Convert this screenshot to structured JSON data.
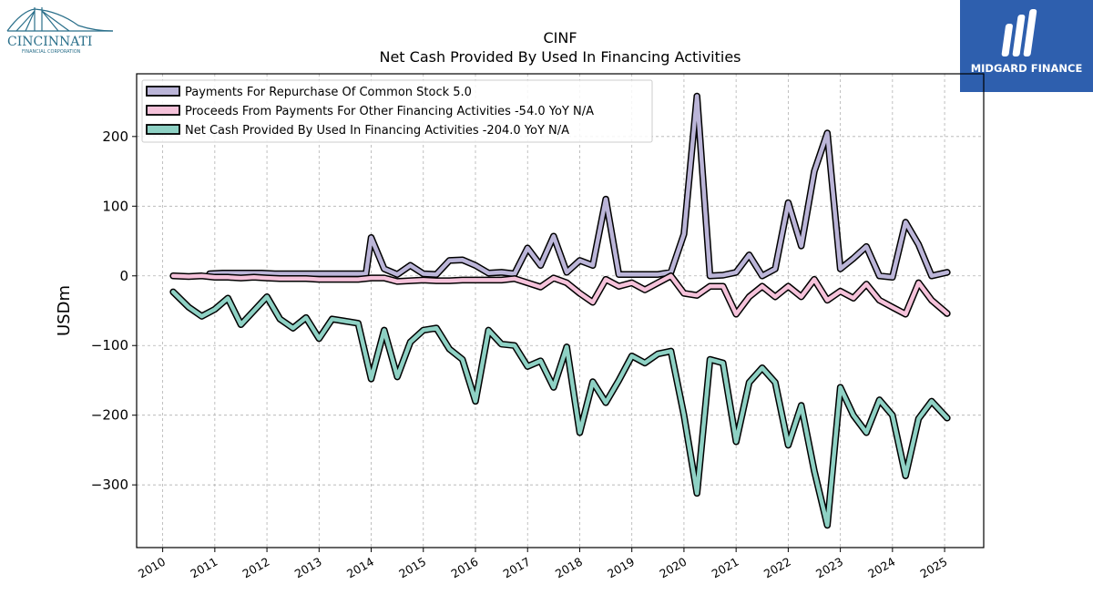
{
  "header": {
    "company_logo_text": "CINCINNATI",
    "company_logo_subtext": "FINANCIAL CORPORATION",
    "brand": "MIDGARD FINANCE"
  },
  "colors": {
    "repurchase": "#bbb5d8",
    "other": "#f5c2da",
    "net": "#8ed1c4",
    "brand_bg": "#2e5fae",
    "logo_teal": "#2a6f8a"
  },
  "chart_data": {
    "type": "line",
    "title": "CINF",
    "subtitle": "Net Cash Provided By Used In Financing Activities",
    "xlabel": "",
    "ylabel": "USDm",
    "ylim": [
      -390,
      290
    ],
    "yticks": [
      200,
      100,
      0,
      -100,
      -200,
      -300
    ],
    "ytick_labels": [
      "200",
      "100",
      "0",
      "−100",
      "−200",
      "−300"
    ],
    "xlim": [
      2009.5,
      2025.75
    ],
    "xticks": [
      2010,
      2011,
      2012,
      2013,
      2014,
      2015,
      2016,
      2017,
      2018,
      2019,
      2020,
      2021,
      2022,
      2023,
      2024,
      2025
    ],
    "grid": true,
    "legend_position": "top-left",
    "legend": [
      "Payments For Repurchase Of Common Stock  5.0",
      "Proceeds From Payments For Other Financing Activities  -54.0 YoY N/A",
      "Net Cash Provided By Used In Financing Activities  -204.0 YoY N/A"
    ],
    "series": [
      {
        "name": "Payments For Repurchase Of Common Stock",
        "points": [
          [
            2010.9,
            3
          ],
          [
            2011.15,
            4
          ],
          [
            2011.4,
            4
          ],
          [
            2011.65,
            4
          ],
          [
            2011.9,
            4
          ],
          [
            2012.15,
            3
          ],
          [
            2012.4,
            3
          ],
          [
            2012.65,
            3
          ],
          [
            2012.9,
            3
          ],
          [
            2013.15,
            3
          ],
          [
            2013.4,
            3
          ],
          [
            2013.65,
            3
          ],
          [
            2013.9,
            3
          ],
          [
            2014.0,
            55
          ],
          [
            2014.25,
            10
          ],
          [
            2014.5,
            2
          ],
          [
            2014.75,
            15
          ],
          [
            2015.0,
            3
          ],
          [
            2015.25,
            2
          ],
          [
            2015.5,
            22
          ],
          [
            2015.75,
            23
          ],
          [
            2016.0,
            15
          ],
          [
            2016.25,
            4
          ],
          [
            2016.5,
            5
          ],
          [
            2016.75,
            3
          ],
          [
            2017.0,
            40
          ],
          [
            2017.25,
            15
          ],
          [
            2017.5,
            57
          ],
          [
            2017.75,
            5
          ],
          [
            2018.0,
            22
          ],
          [
            2018.25,
            15
          ],
          [
            2018.5,
            110
          ],
          [
            2018.75,
            2
          ],
          [
            2019.0,
            2
          ],
          [
            2019.25,
            2
          ],
          [
            2019.5,
            2
          ],
          [
            2019.75,
            5
          ],
          [
            2020.0,
            60
          ],
          [
            2020.25,
            258
          ],
          [
            2020.5,
            0
          ],
          [
            2020.75,
            1
          ],
          [
            2021.0,
            5
          ],
          [
            2021.25,
            30
          ],
          [
            2021.5,
            0
          ],
          [
            2021.75,
            10
          ],
          [
            2022.0,
            105
          ],
          [
            2022.25,
            43
          ],
          [
            2022.5,
            150
          ],
          [
            2022.75,
            205
          ],
          [
            2023.0,
            10
          ],
          [
            2023.25,
            25
          ],
          [
            2023.5,
            42
          ],
          [
            2023.75,
            0
          ],
          [
            2024.0,
            -2
          ],
          [
            2024.25,
            77
          ],
          [
            2024.5,
            45
          ],
          [
            2024.75,
            0
          ],
          [
            2025.05,
            5
          ]
        ]
      },
      {
        "name": "Proceeds From Payments For Other Financing Activities",
        "points": [
          [
            2010.2,
            0
          ],
          [
            2010.5,
            -1
          ],
          [
            2010.75,
            0
          ],
          [
            2011.0,
            -2
          ],
          [
            2011.25,
            -2
          ],
          [
            2011.5,
            -3
          ],
          [
            2011.75,
            -2
          ],
          [
            2012.0,
            -3
          ],
          [
            2012.25,
            -4
          ],
          [
            2012.5,
            -4
          ],
          [
            2012.75,
            -4
          ],
          [
            2013.0,
            -5
          ],
          [
            2013.25,
            -5
          ],
          [
            2013.5,
            -5
          ],
          [
            2013.75,
            -5
          ],
          [
            2014.0,
            -3
          ],
          [
            2014.25,
            -3
          ],
          [
            2014.5,
            -8
          ],
          [
            2014.75,
            -7
          ],
          [
            2015.0,
            -6
          ],
          [
            2015.25,
            -7
          ],
          [
            2015.5,
            -7
          ],
          [
            2015.75,
            -6
          ],
          [
            2016.0,
            -6
          ],
          [
            2016.25,
            -6
          ],
          [
            2016.5,
            -6
          ],
          [
            2016.75,
            -4
          ],
          [
            2017.0,
            -10
          ],
          [
            2017.25,
            -16
          ],
          [
            2017.5,
            -3
          ],
          [
            2017.75,
            -10
          ],
          [
            2018.0,
            -25
          ],
          [
            2018.25,
            -38
          ],
          [
            2018.5,
            -5
          ],
          [
            2018.75,
            -15
          ],
          [
            2019.0,
            -10
          ],
          [
            2019.25,
            -20
          ],
          [
            2019.5,
            -10
          ],
          [
            2019.75,
            0
          ],
          [
            2020.0,
            -25
          ],
          [
            2020.25,
            -28
          ],
          [
            2020.5,
            -15
          ],
          [
            2020.75,
            -15
          ],
          [
            2021.0,
            -55
          ],
          [
            2021.25,
            -30
          ],
          [
            2021.5,
            -15
          ],
          [
            2021.75,
            -30
          ],
          [
            2022.0,
            -15
          ],
          [
            2022.25,
            -30
          ],
          [
            2022.5,
            -5
          ],
          [
            2022.75,
            -35
          ],
          [
            2023.0,
            -22
          ],
          [
            2023.25,
            -32
          ],
          [
            2023.5,
            -12
          ],
          [
            2023.75,
            -35
          ],
          [
            2024.0,
            -45
          ],
          [
            2024.25,
            -55
          ],
          [
            2024.5,
            -10
          ],
          [
            2024.75,
            -35
          ],
          [
            2025.05,
            -54
          ]
        ]
      },
      {
        "name": "Net Cash Provided By Used In Financing Activities",
        "points": [
          [
            2010.2,
            -23
          ],
          [
            2010.5,
            -45
          ],
          [
            2010.75,
            -58
          ],
          [
            2011.0,
            -48
          ],
          [
            2011.25,
            -32
          ],
          [
            2011.5,
            -70
          ],
          [
            2011.75,
            -50
          ],
          [
            2012.0,
            -30
          ],
          [
            2012.25,
            -62
          ],
          [
            2012.5,
            -75
          ],
          [
            2012.75,
            -60
          ],
          [
            2013.0,
            -90
          ],
          [
            2013.25,
            -62
          ],
          [
            2013.5,
            -65
          ],
          [
            2013.75,
            -68
          ],
          [
            2014.0,
            -148
          ],
          [
            2014.25,
            -78
          ],
          [
            2014.5,
            -145
          ],
          [
            2014.75,
            -95
          ],
          [
            2015.0,
            -78
          ],
          [
            2015.25,
            -75
          ],
          [
            2015.5,
            -105
          ],
          [
            2015.75,
            -120
          ],
          [
            2016.0,
            -180
          ],
          [
            2016.25,
            -78
          ],
          [
            2016.5,
            -98
          ],
          [
            2016.75,
            -100
          ],
          [
            2017.0,
            -130
          ],
          [
            2017.25,
            -122
          ],
          [
            2017.5,
            -160
          ],
          [
            2017.75,
            -102
          ],
          [
            2018.0,
            -225
          ],
          [
            2018.25,
            -152
          ],
          [
            2018.5,
            -182
          ],
          [
            2018.75,
            -150
          ],
          [
            2019.0,
            -115
          ],
          [
            2019.25,
            -125
          ],
          [
            2019.5,
            -112
          ],
          [
            2019.75,
            -108
          ],
          [
            2020.0,
            -200
          ],
          [
            2020.25,
            -312
          ],
          [
            2020.5,
            -120
          ],
          [
            2020.75,
            -125
          ],
          [
            2021.0,
            -238
          ],
          [
            2021.25,
            -153
          ],
          [
            2021.5,
            -132
          ],
          [
            2021.75,
            -153
          ],
          [
            2022.0,
            -243
          ],
          [
            2022.25,
            -186
          ],
          [
            2022.5,
            -280
          ],
          [
            2022.75,
            -358
          ],
          [
            2023.0,
            -160
          ],
          [
            2023.25,
            -200
          ],
          [
            2023.5,
            -225
          ],
          [
            2023.75,
            -178
          ],
          [
            2024.0,
            -200
          ],
          [
            2024.25,
            -287
          ],
          [
            2024.5,
            -205
          ],
          [
            2024.75,
            -180
          ],
          [
            2025.05,
            -204
          ]
        ]
      }
    ]
  }
}
